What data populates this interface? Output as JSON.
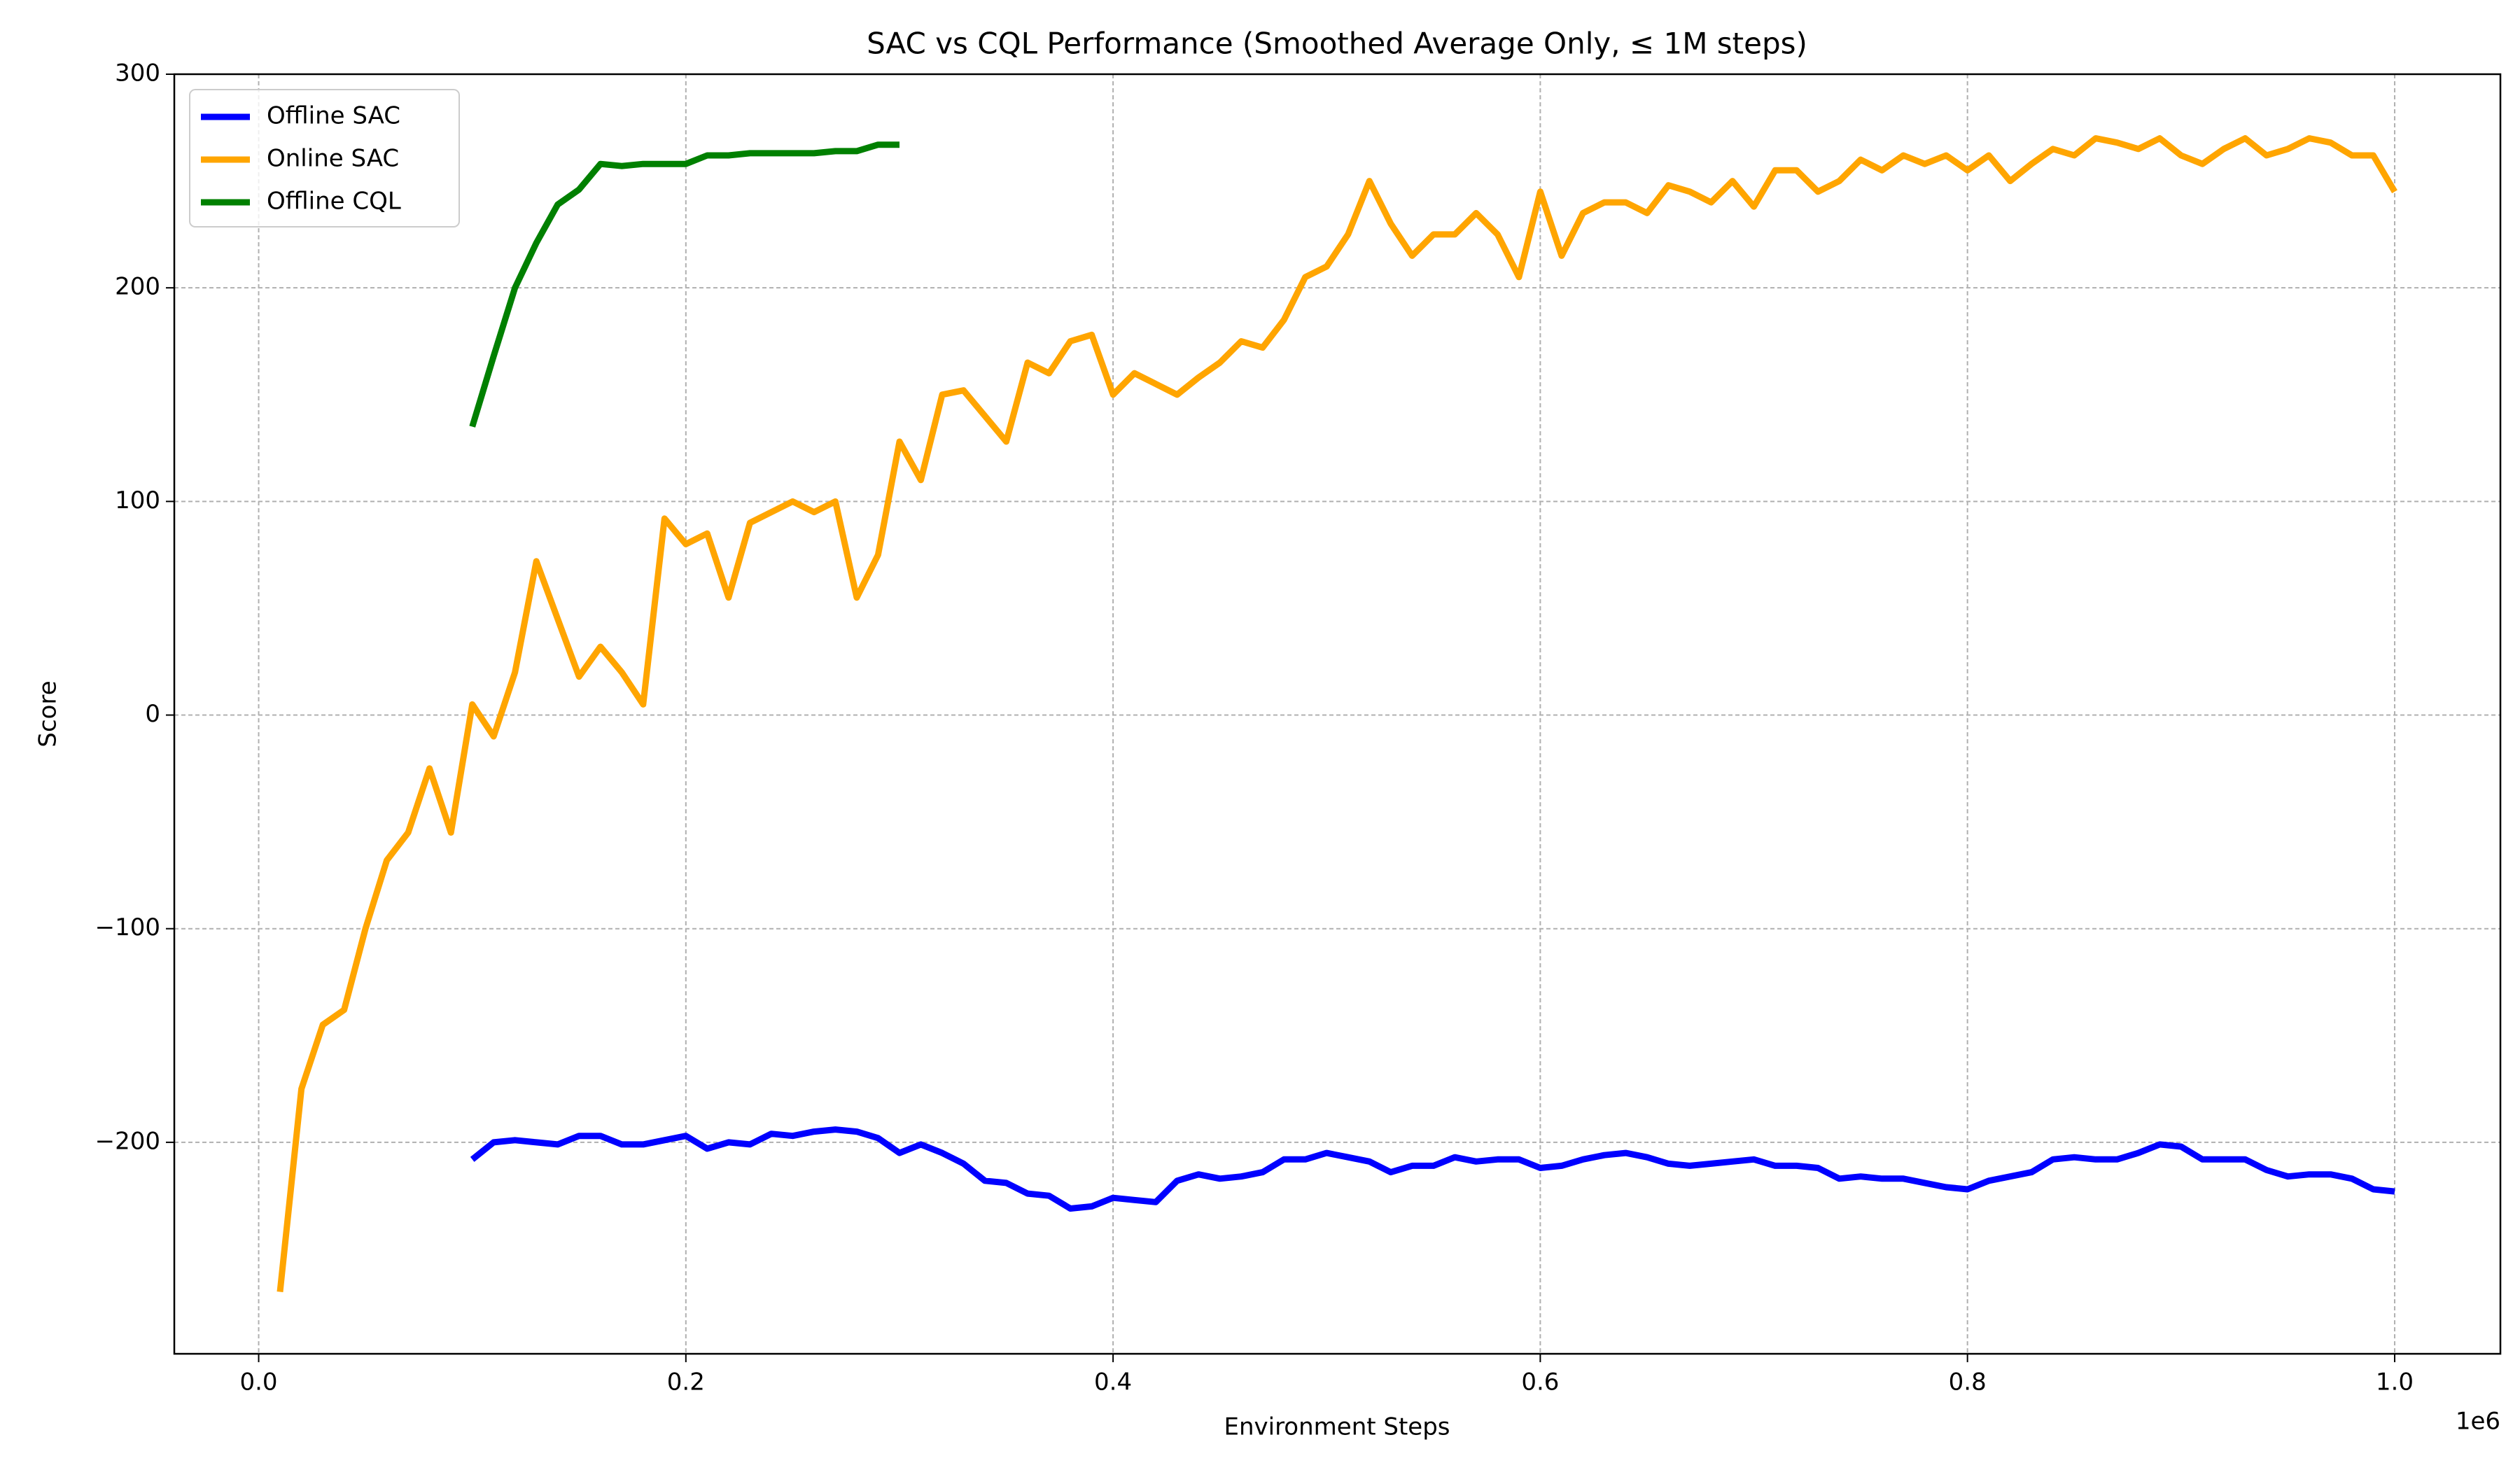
{
  "chart_data": {
    "type": "line",
    "title": "SAC vs CQL Performance (Smoothed Average Only, ≤ 1M steps)",
    "xlabel": "Environment Steps",
    "ylabel": "Score",
    "x_offset_label": "1e6",
    "xlim": [
      -0.0395,
      1.0495
    ],
    "ylim": [
      -299,
      300
    ],
    "xticks": [
      {
        "value": 0,
        "label": "0.0"
      },
      0.2,
      0.4,
      0.6,
      0.8,
      {
        "value": 1,
        "label": "1.0"
      }
    ],
    "yticks": [
      {
        "value": -200,
        "label": "−200"
      },
      {
        "value": -100,
        "label": "−100"
      },
      0,
      100,
      200,
      300
    ],
    "grid": true,
    "legend": "upper left",
    "series": [
      {
        "name": "Offline SAC",
        "color": "#0000ff",
        "x": [
          0.1,
          0.11,
          0.12,
          0.13,
          0.14,
          0.15,
          0.16,
          0.17,
          0.18,
          0.19,
          0.2,
          0.21,
          0.22,
          0.23,
          0.24,
          0.25,
          0.26,
          0.27,
          0.28,
          0.29,
          0.3,
          0.31,
          0.32,
          0.33,
          0.34,
          0.35,
          0.36,
          0.37,
          0.38,
          0.39,
          0.4,
          0.41,
          0.42,
          0.43,
          0.44,
          0.45,
          0.46,
          0.47,
          0.48,
          0.49,
          0.5,
          0.51,
          0.52,
          0.53,
          0.54,
          0.55,
          0.56,
          0.57,
          0.58,
          0.59,
          0.6,
          0.61,
          0.62,
          0.63,
          0.64,
          0.65,
          0.66,
          0.67,
          0.68,
          0.69,
          0.7,
          0.71,
          0.72,
          0.73,
          0.74,
          0.75,
          0.76,
          0.77,
          0.78,
          0.79,
          0.8,
          0.81,
          0.82,
          0.83,
          0.84,
          0.85,
          0.86,
          0.87,
          0.88,
          0.89,
          0.9,
          0.91,
          0.92,
          0.93,
          0.94,
          0.95,
          0.96,
          0.97,
          0.98,
          0.99,
          1.0
        ],
        "values": [
          -208,
          -200,
          -199,
          -200,
          -201,
          -197,
          -197,
          -201,
          -201,
          -199,
          -197,
          -203,
          -200,
          -201,
          -196,
          -197,
          -195,
          -194,
          -195,
          -198,
          -205,
          -201,
          -205,
          -210,
          -218,
          -219,
          -224,
          -225,
          -231,
          -230,
          -226,
          -227,
          -228,
          -218,
          -215,
          -217,
          -216,
          -214,
          -208,
          -208,
          -205,
          -207,
          -209,
          -214,
          -211,
          -211,
          -207,
          -209,
          -208,
          -208,
          -212,
          -211,
          -208,
          -206,
          -205,
          -207,
          -210,
          -211,
          -210,
          -209,
          -208,
          -211,
          -211,
          -212,
          -217,
          -216,
          -217,
          -217,
          -219,
          -221,
          -222,
          -218,
          -216,
          -214,
          -208,
          -207,
          -208,
          -208,
          -205,
          -201,
          -202,
          -208,
          -208,
          -208,
          -213,
          -216,
          -215,
          -215,
          -217,
          -222,
          -223
        ]
      },
      {
        "name": "Online SAC",
        "color": "#ffa500",
        "x": [
          0.01,
          0.02,
          0.03,
          0.04,
          0.05,
          0.06,
          0.07,
          0.08,
          0.09,
          0.1,
          0.11,
          0.12,
          0.13,
          0.14,
          0.15,
          0.16,
          0.17,
          0.18,
          0.19,
          0.2,
          0.21,
          0.22,
          0.23,
          0.24,
          0.25,
          0.26,
          0.27,
          0.28,
          0.29,
          0.3,
          0.31,
          0.32,
          0.33,
          0.34,
          0.35,
          0.36,
          0.37,
          0.38,
          0.39,
          0.4,
          0.41,
          0.42,
          0.43,
          0.44,
          0.45,
          0.46,
          0.47,
          0.48,
          0.49,
          0.5,
          0.51,
          0.52,
          0.53,
          0.54,
          0.55,
          0.56,
          0.57,
          0.58,
          0.59,
          0.6,
          0.61,
          0.62,
          0.63,
          0.64,
          0.65,
          0.66,
          0.67,
          0.68,
          0.69,
          0.7,
          0.71,
          0.72,
          0.73,
          0.74,
          0.75,
          0.76,
          0.77,
          0.78,
          0.79,
          0.8,
          0.81,
          0.82,
          0.83,
          0.84,
          0.85,
          0.86,
          0.87,
          0.88,
          0.89,
          0.9,
          0.91,
          0.92,
          0.93,
          0.94,
          0.95,
          0.96,
          0.97,
          0.98,
          0.99,
          1.0
        ],
        "values": [
          -270,
          -175,
          -145,
          -138,
          -100,
          -68,
          -55,
          -25,
          -55,
          5,
          -10,
          20,
          72,
          45,
          18,
          32,
          20,
          5,
          92,
          80,
          85,
          55,
          90,
          95,
          100,
          95,
          100,
          55,
          75,
          128,
          110,
          150,
          152,
          140,
          128,
          165,
          160,
          175,
          178,
          150,
          160,
          155,
          150,
          158,
          165,
          175,
          172,
          185,
          205,
          210,
          225,
          250,
          230,
          215,
          225,
          225,
          235,
          225,
          205,
          245,
          215,
          235,
          240,
          240,
          235,
          248,
          245,
          240,
          250,
          238,
          255,
          255,
          245,
          250,
          260,
          255,
          262,
          258,
          262,
          255,
          262,
          250,
          258,
          265,
          262,
          270,
          268,
          265,
          270,
          262,
          258,
          265,
          270,
          262,
          265,
          270,
          268,
          262,
          262,
          245
        ]
      },
      {
        "name": "Offline CQL",
        "color": "#008000",
        "x": [
          0.1,
          0.11,
          0.12,
          0.13,
          0.14,
          0.15,
          0.16,
          0.17,
          0.18,
          0.19,
          0.2,
          0.21,
          0.22,
          0.23,
          0.24,
          0.25,
          0.26,
          0.27,
          0.28,
          0.29,
          0.3
        ],
        "values": [
          135,
          168,
          200,
          221,
          239,
          246,
          258,
          257,
          258,
          258,
          258,
          262,
          262,
          263,
          263,
          263,
          263,
          264,
          264,
          267,
          267
        ]
      }
    ]
  }
}
